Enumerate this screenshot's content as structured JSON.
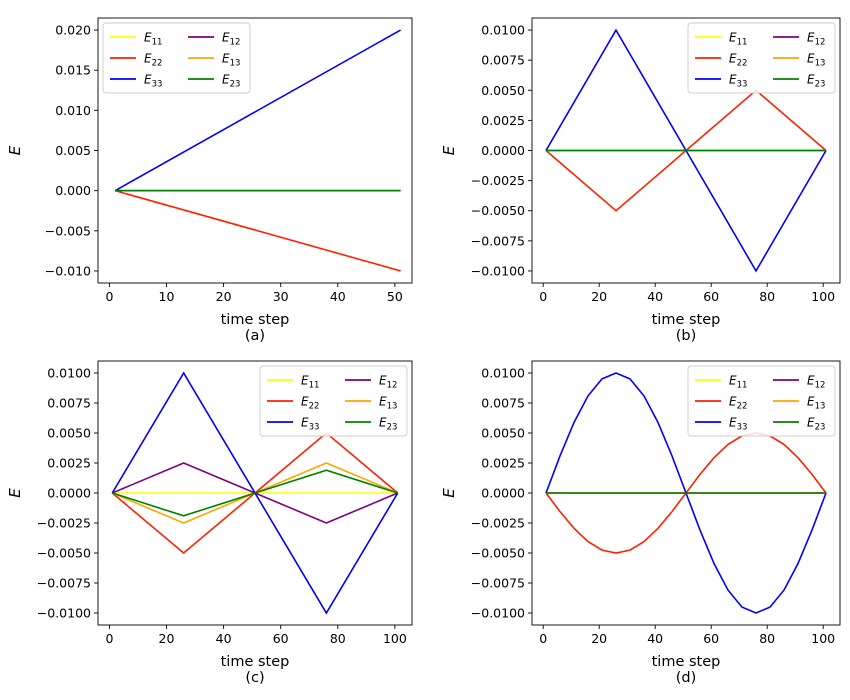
{
  "chart_data": [
    {
      "type": "line",
      "caption": "(a)",
      "xlabel": "time step",
      "ylabel": "E",
      "xlim": [
        -2,
        53
      ],
      "ylim": [
        -0.0115,
        0.0215
      ],
      "xticks": [
        0,
        10,
        20,
        30,
        40,
        50
      ],
      "xtick_labels": [
        "0",
        "10",
        "20",
        "30",
        "40",
        "50"
      ],
      "yticks": [
        -0.01,
        -0.005,
        0.0,
        0.005,
        0.01,
        0.015,
        0.02
      ],
      "ytick_labels": [
        "−0.010",
        "−0.005",
        "0.000",
        "0.005",
        "0.010",
        "0.015",
        "0.020"
      ],
      "legend_position": "top-left",
      "series": [
        {
          "name": "E11",
          "sub": "11",
          "color": "#ffff00",
          "points": [
            [
              1,
              0
            ],
            [
              51,
              0
            ]
          ]
        },
        {
          "name": "E12",
          "sub": "12",
          "color": "#800080",
          "points": [
            [
              1,
              0
            ],
            [
              51,
              0
            ]
          ]
        },
        {
          "name": "E22",
          "sub": "22",
          "color": "#ff2000",
          "points": [
            [
              1,
              0
            ],
            [
              51,
              -0.01
            ]
          ]
        },
        {
          "name": "E13",
          "sub": "13",
          "color": "#ffa500",
          "points": [
            [
              1,
              0
            ],
            [
              51,
              0
            ]
          ]
        },
        {
          "name": "E33",
          "sub": "33",
          "color": "#0000ff",
          "points": [
            [
              1,
              0
            ],
            [
              51,
              0.02
            ]
          ]
        },
        {
          "name": "E23",
          "sub": "23",
          "color": "#008000",
          "points": [
            [
              1,
              0
            ],
            [
              51,
              0
            ]
          ]
        }
      ]
    },
    {
      "type": "line",
      "caption": "(b)",
      "xlabel": "time step",
      "ylabel": "E",
      "xlim": [
        -4,
        106
      ],
      "ylim": [
        -0.011,
        0.011
      ],
      "xticks": [
        0,
        20,
        40,
        60,
        80,
        100
      ],
      "xtick_labels": [
        "0",
        "20",
        "40",
        "60",
        "80",
        "100"
      ],
      "yticks": [
        -0.01,
        -0.0075,
        -0.005,
        -0.0025,
        0.0,
        0.0025,
        0.005,
        0.0075,
        0.01
      ],
      "ytick_labels": [
        "−0.0100",
        "−0.0075",
        "−0.0050",
        "−0.0025",
        "0.0000",
        "0.0025",
        "0.0050",
        "0.0075",
        "0.0100"
      ],
      "legend_position": "top-right",
      "series": [
        {
          "name": "E11",
          "sub": "11",
          "color": "#ffff00",
          "points": [
            [
              1,
              0
            ],
            [
              101,
              0
            ]
          ]
        },
        {
          "name": "E12",
          "sub": "12",
          "color": "#800080",
          "points": [
            [
              1,
              0
            ],
            [
              101,
              0
            ]
          ]
        },
        {
          "name": "E22",
          "sub": "22",
          "color": "#ff2000",
          "points": [
            [
              1,
              0
            ],
            [
              26,
              -0.005
            ],
            [
              51,
              0
            ],
            [
              76,
              0.005
            ],
            [
              101,
              0
            ]
          ]
        },
        {
          "name": "E13",
          "sub": "13",
          "color": "#ffa500",
          "points": [
            [
              1,
              0
            ],
            [
              101,
              0
            ]
          ]
        },
        {
          "name": "E33",
          "sub": "33",
          "color": "#0000ff",
          "points": [
            [
              1,
              0
            ],
            [
              26,
              0.01
            ],
            [
              51,
              0
            ],
            [
              76,
              -0.01
            ],
            [
              101,
              0
            ]
          ]
        },
        {
          "name": "E23",
          "sub": "23",
          "color": "#008000",
          "points": [
            [
              1,
              0
            ],
            [
              101,
              0
            ]
          ]
        }
      ]
    },
    {
      "type": "line",
      "caption": "(c)",
      "xlabel": "time step",
      "ylabel": "E",
      "xlim": [
        -4,
        106
      ],
      "ylim": [
        -0.011,
        0.011
      ],
      "xticks": [
        0,
        20,
        40,
        60,
        80,
        100
      ],
      "xtick_labels": [
        "0",
        "20",
        "40",
        "60",
        "80",
        "100"
      ],
      "yticks": [
        -0.01,
        -0.0075,
        -0.005,
        -0.0025,
        0.0,
        0.0025,
        0.005,
        0.0075,
        0.01
      ],
      "ytick_labels": [
        "−0.0100",
        "−0.0075",
        "−0.0050",
        "−0.0025",
        "0.0000",
        "0.0025",
        "0.0050",
        "0.0075",
        "0.0100"
      ],
      "legend_position": "top-right",
      "series": [
        {
          "name": "E11",
          "sub": "11",
          "color": "#ffff00",
          "points": [
            [
              1,
              0
            ],
            [
              101,
              0
            ]
          ]
        },
        {
          "name": "E12",
          "sub": "12",
          "color": "#800080",
          "points": [
            [
              1,
              0
            ],
            [
              26,
              0.0025
            ],
            [
              51,
              0
            ],
            [
              76,
              -0.0025
            ],
            [
              101,
              0
            ]
          ]
        },
        {
          "name": "E22",
          "sub": "22",
          "color": "#ff2000",
          "points": [
            [
              1,
              0
            ],
            [
              26,
              -0.005
            ],
            [
              51,
              0
            ],
            [
              76,
              0.005
            ],
            [
              101,
              0
            ]
          ]
        },
        {
          "name": "E13",
          "sub": "13",
          "color": "#ffa500",
          "points": [
            [
              1,
              0
            ],
            [
              26,
              -0.0025
            ],
            [
              51,
              0
            ],
            [
              76,
              0.0025
            ],
            [
              101,
              0
            ]
          ]
        },
        {
          "name": "E33",
          "sub": "33",
          "color": "#0000ff",
          "points": [
            [
              1,
              0
            ],
            [
              26,
              0.01
            ],
            [
              51,
              0
            ],
            [
              76,
              -0.01
            ],
            [
              101,
              0
            ]
          ]
        },
        {
          "name": "E23",
          "sub": "23",
          "color": "#008000",
          "points": [
            [
              1,
              0
            ],
            [
              26,
              -0.0019
            ],
            [
              51,
              0
            ],
            [
              76,
              0.0019
            ],
            [
              101,
              0
            ]
          ]
        }
      ]
    },
    {
      "type": "line",
      "caption": "(d)",
      "xlabel": "time step",
      "ylabel": "E",
      "xlim": [
        -4,
        106
      ],
      "ylim": [
        -0.011,
        0.011
      ],
      "xticks": [
        0,
        20,
        40,
        60,
        80,
        100
      ],
      "xtick_labels": [
        "0",
        "20",
        "40",
        "60",
        "80",
        "100"
      ],
      "yticks": [
        -0.01,
        -0.0075,
        -0.005,
        -0.0025,
        0.0,
        0.0025,
        0.005,
        0.0075,
        0.01
      ],
      "ytick_labels": [
        "−0.0100",
        "−0.0075",
        "−0.0050",
        "−0.0025",
        "0.0000",
        "0.0025",
        "0.0050",
        "0.0075",
        "0.0100"
      ],
      "legend_position": "top-right",
      "series": [
        {
          "name": "E11",
          "sub": "11",
          "color": "#ffff00",
          "points": [
            [
              1,
              0
            ],
            [
              101,
              0
            ]
          ]
        },
        {
          "name": "E12",
          "sub": "12",
          "color": "#800080",
          "points": [
            [
              1,
              0
            ],
            [
              101,
              0
            ]
          ]
        },
        {
          "name": "E22",
          "sub": "22",
          "color": "#ff2000",
          "points": [
            [
              1,
              0
            ],
            [
              6,
              -0.00155
            ],
            [
              11,
              -0.00294
            ],
            [
              16,
              -0.00405
            ],
            [
              21,
              -0.00476
            ],
            [
              26,
              -0.005
            ],
            [
              31,
              -0.00476
            ],
            [
              36,
              -0.00405
            ],
            [
              41,
              -0.00294
            ],
            [
              46,
              -0.00155
            ],
            [
              51,
              0
            ],
            [
              56,
              0.00155
            ],
            [
              61,
              0.00294
            ],
            [
              66,
              0.00405
            ],
            [
              71,
              0.00476
            ],
            [
              76,
              0.005
            ],
            [
              81,
              0.00476
            ],
            [
              86,
              0.00405
            ],
            [
              91,
              0.00294
            ],
            [
              96,
              0.00155
            ],
            [
              101,
              0
            ]
          ]
        },
        {
          "name": "E13",
          "sub": "13",
          "color": "#ffa500",
          "points": [
            [
              1,
              0
            ],
            [
              101,
              0
            ]
          ]
        },
        {
          "name": "E33",
          "sub": "33",
          "color": "#0000ff",
          "points": [
            [
              1,
              0
            ],
            [
              6,
              0.00309
            ],
            [
              11,
              0.00588
            ],
            [
              16,
              0.00809
            ],
            [
              21,
              0.00951
            ],
            [
              26,
              0.01
            ],
            [
              31,
              0.00951
            ],
            [
              36,
              0.00809
            ],
            [
              41,
              0.00588
            ],
            [
              46,
              0.00309
            ],
            [
              51,
              0
            ],
            [
              56,
              -0.00309
            ],
            [
              61,
              -0.00588
            ],
            [
              66,
              -0.00809
            ],
            [
              71,
              -0.00951
            ],
            [
              76,
              -0.01
            ],
            [
              81,
              -0.00951
            ],
            [
              86,
              -0.00809
            ],
            [
              91,
              -0.00588
            ],
            [
              96,
              -0.00309
            ],
            [
              101,
              0
            ]
          ]
        },
        {
          "name": "E23",
          "sub": "23",
          "color": "#008000",
          "points": [
            [
              1,
              0
            ],
            [
              101,
              0
            ]
          ]
        }
      ]
    }
  ]
}
